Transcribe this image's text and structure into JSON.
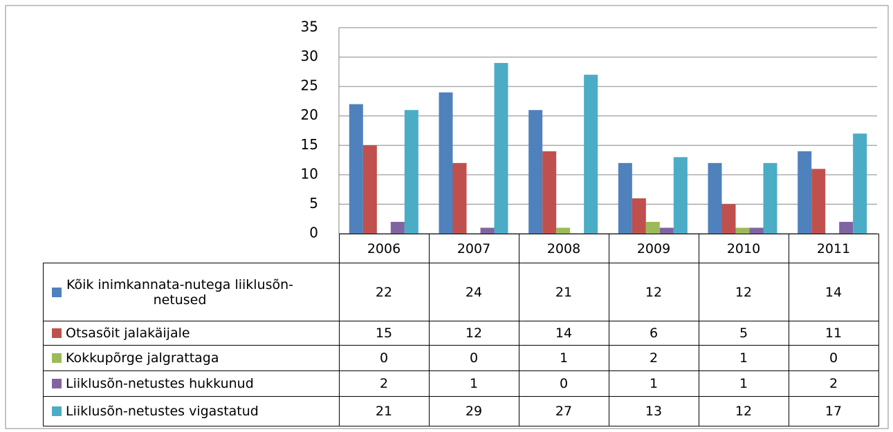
{
  "chart_data": {
    "type": "bar",
    "categories": [
      "2006",
      "2007",
      "2008",
      "2009",
      "2010",
      "2011"
    ],
    "series": [
      {
        "name": "Kõik inimkannata-nutega liiklusõn-netused",
        "color": "#4F81BD",
        "values": [
          22,
          24,
          21,
          12,
          12,
          14
        ]
      },
      {
        "name": "Otsasõit jalakäijale",
        "color": "#C0504D",
        "values": [
          15,
          12,
          14,
          6,
          5,
          11
        ]
      },
      {
        "name": "Kokkupõrge jalgrattaga",
        "color": "#9BBB59",
        "values": [
          0,
          0,
          1,
          2,
          1,
          0
        ]
      },
      {
        "name": "Liiklusõn-netustes hukkunud",
        "color": "#8064A2",
        "values": [
          2,
          1,
          0,
          1,
          1,
          2
        ]
      },
      {
        "name": "Liiklusõn-netustes vigastatud",
        "color": "#4BACC6",
        "values": [
          21,
          29,
          27,
          13,
          12,
          17
        ]
      }
    ],
    "ylim": [
      0,
      35
    ],
    "yticks": [
      0,
      5,
      10,
      15,
      20,
      25,
      30,
      35
    ],
    "grid": true
  }
}
